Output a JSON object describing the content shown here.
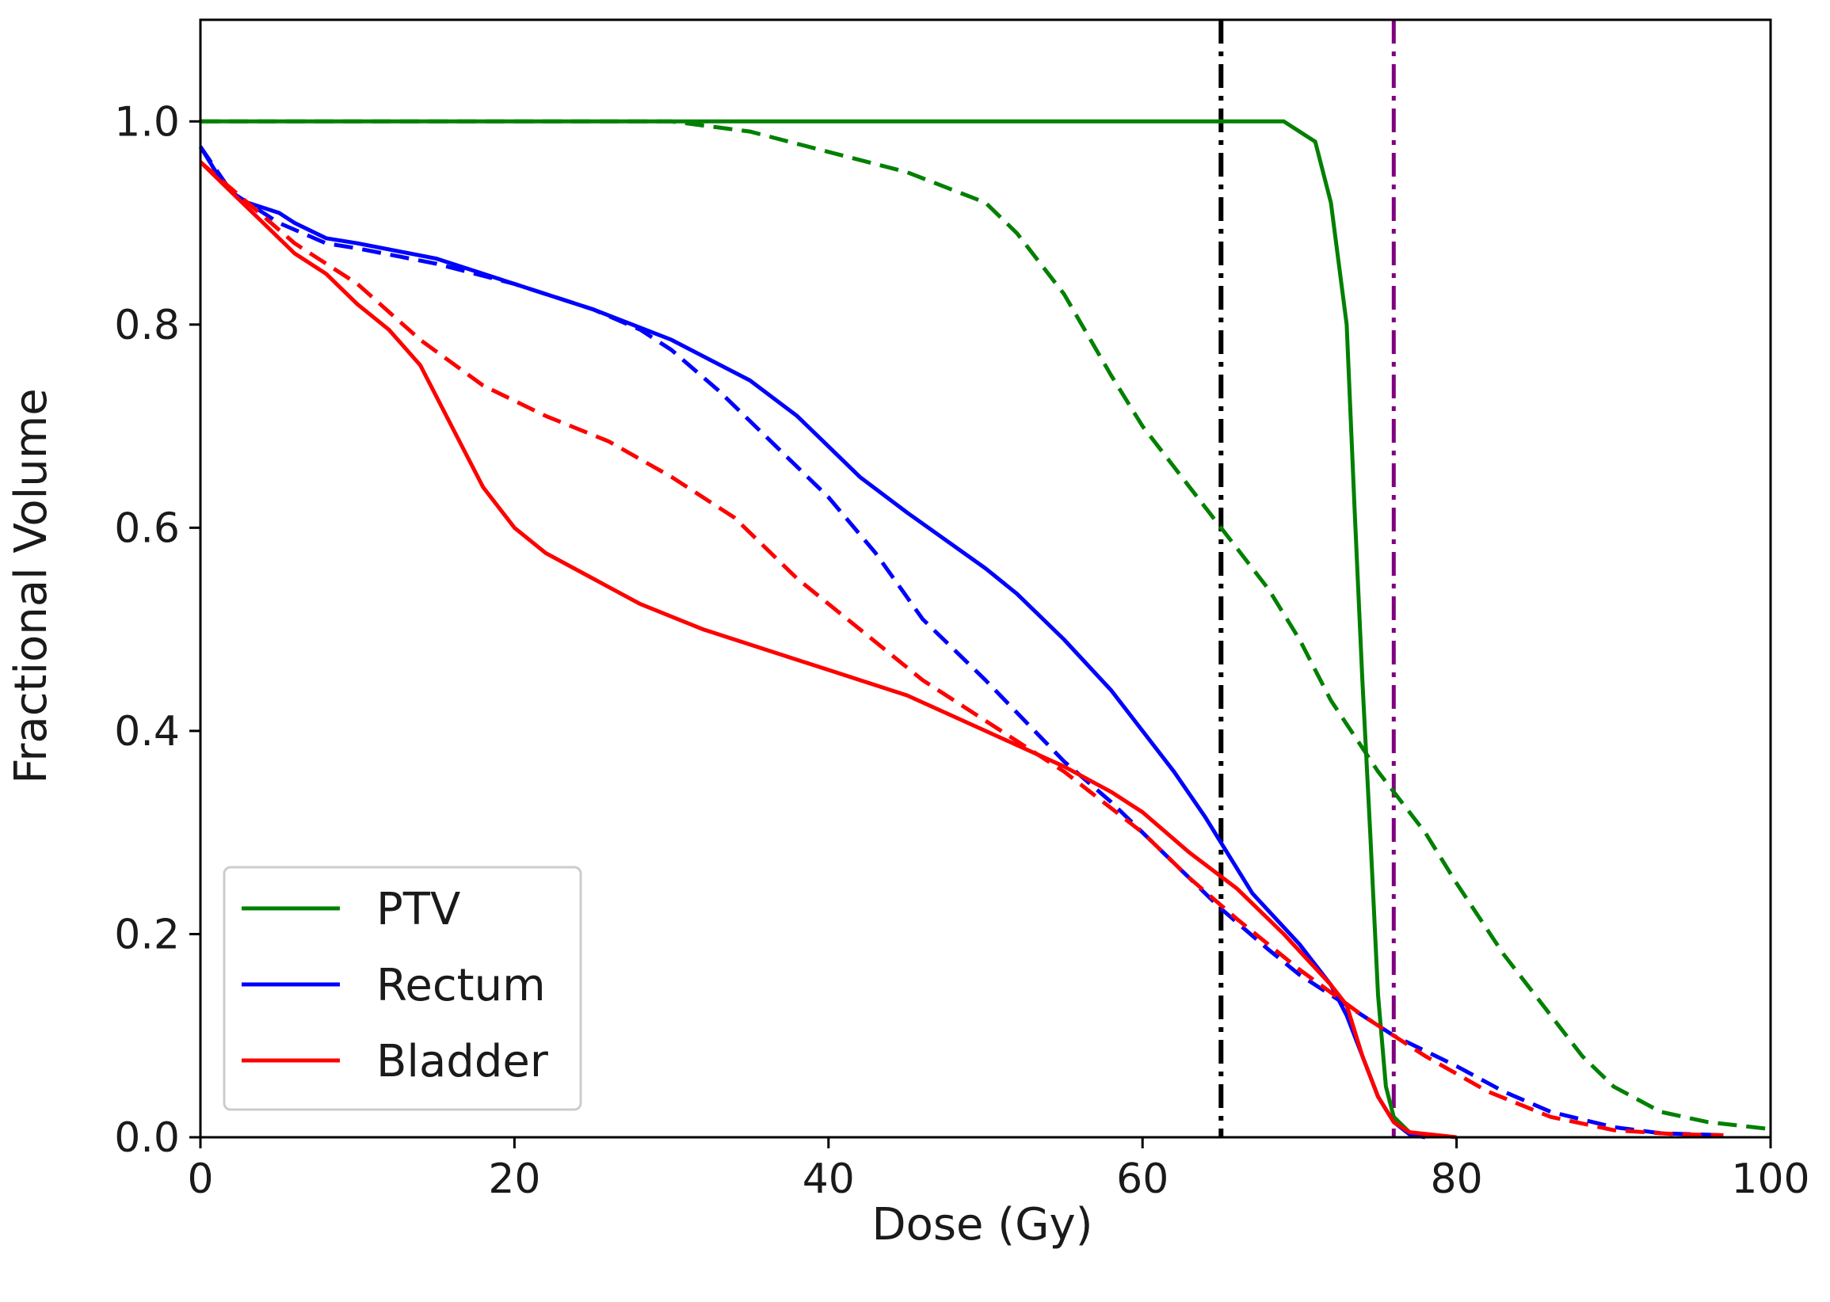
{
  "chart_data": {
    "type": "line",
    "title": "",
    "xlabel": "Dose (Gy)",
    "ylabel": "Fractional Volume",
    "xlim": [
      0,
      100
    ],
    "ylim": [
      0,
      1.1
    ],
    "xticks": [
      0,
      20,
      40,
      60,
      80,
      100
    ],
    "xtick_labels": [
      "0",
      "20",
      "40",
      "60",
      "80",
      "100"
    ],
    "yticks": [
      0,
      0.2,
      0.4,
      0.6,
      0.8,
      1.0
    ],
    "ytick_labels": [
      "0.0",
      "0.2",
      "0.4",
      "0.6",
      "0.8",
      "1.0"
    ],
    "grid": false,
    "legend_position": "lower-left",
    "legend": [
      {
        "label": "PTV",
        "color": "#008000"
      },
      {
        "label": "Rectum",
        "color": "#0000ff"
      },
      {
        "label": "Bladder",
        "color": "#ff0000"
      }
    ],
    "series": [
      {
        "name": "PTV",
        "style": "solid",
        "color": "#008000",
        "points": [
          [
            0,
            1.0
          ],
          [
            20,
            1.0
          ],
          [
            40,
            1.0
          ],
          [
            60,
            1.0
          ],
          [
            66,
            1.0
          ],
          [
            69,
            1.0
          ],
          [
            70,
            0.99
          ],
          [
            71,
            0.98
          ],
          [
            72,
            0.92
          ],
          [
            73,
            0.8
          ],
          [
            73.5,
            0.62
          ],
          [
            74,
            0.45
          ],
          [
            74.5,
            0.3
          ],
          [
            75,
            0.14
          ],
          [
            75.5,
            0.05
          ],
          [
            76,
            0.02
          ],
          [
            77,
            0.005
          ],
          [
            78,
            0.0
          ]
        ]
      },
      {
        "name": "PTV (dashed)",
        "style": "dashed",
        "color": "#008000",
        "points": [
          [
            0,
            1.0
          ],
          [
            10,
            1.0
          ],
          [
            20,
            1.0
          ],
          [
            30,
            1.0
          ],
          [
            35,
            0.99
          ],
          [
            40,
            0.97
          ],
          [
            45,
            0.95
          ],
          [
            50,
            0.92
          ],
          [
            52,
            0.89
          ],
          [
            55,
            0.83
          ],
          [
            58,
            0.75
          ],
          [
            60,
            0.7
          ],
          [
            62,
            0.66
          ],
          [
            65,
            0.6
          ],
          [
            68,
            0.54
          ],
          [
            70,
            0.49
          ],
          [
            72,
            0.43
          ],
          [
            75,
            0.36
          ],
          [
            78,
            0.3
          ],
          [
            80,
            0.25
          ],
          [
            83,
            0.18
          ],
          [
            85,
            0.14
          ],
          [
            88,
            0.08
          ],
          [
            90,
            0.05
          ],
          [
            93,
            0.025
          ],
          [
            96,
            0.015
          ],
          [
            100,
            0.008
          ]
        ]
      },
      {
        "name": "Rectum",
        "style": "solid",
        "color": "#0000ff",
        "points": [
          [
            0,
            0.975
          ],
          [
            1,
            0.95
          ],
          [
            2,
            0.93
          ],
          [
            3,
            0.92
          ],
          [
            5,
            0.91
          ],
          [
            6,
            0.9
          ],
          [
            8,
            0.885
          ],
          [
            10,
            0.88
          ],
          [
            15,
            0.865
          ],
          [
            20,
            0.84
          ],
          [
            25,
            0.815
          ],
          [
            30,
            0.785
          ],
          [
            35,
            0.745
          ],
          [
            38,
            0.71
          ],
          [
            40,
            0.68
          ],
          [
            42,
            0.65
          ],
          [
            45,
            0.615
          ],
          [
            50,
            0.56
          ],
          [
            52,
            0.535
          ],
          [
            55,
            0.49
          ],
          [
            58,
            0.44
          ],
          [
            60,
            0.4
          ],
          [
            62,
            0.36
          ],
          [
            64,
            0.315
          ],
          [
            65,
            0.29
          ],
          [
            67,
            0.24
          ],
          [
            70,
            0.19
          ],
          [
            72,
            0.15
          ],
          [
            73,
            0.12
          ],
          [
            74,
            0.08
          ],
          [
            75,
            0.04
          ],
          [
            76,
            0.015
          ],
          [
            77,
            0.003
          ],
          [
            78,
            0.0
          ]
        ]
      },
      {
        "name": "Rectum (dashed)",
        "style": "dashed",
        "color": "#0000ff",
        "points": [
          [
            0,
            0.975
          ],
          [
            2,
            0.93
          ],
          [
            5,
            0.9
          ],
          [
            8,
            0.88
          ],
          [
            10,
            0.875
          ],
          [
            15,
            0.86
          ],
          [
            20,
            0.84
          ],
          [
            25,
            0.815
          ],
          [
            28,
            0.795
          ],
          [
            30,
            0.775
          ],
          [
            33,
            0.735
          ],
          [
            36,
            0.69
          ],
          [
            40,
            0.63
          ],
          [
            43,
            0.575
          ],
          [
            46,
            0.51
          ],
          [
            50,
            0.45
          ],
          [
            55,
            0.37
          ],
          [
            58,
            0.33
          ],
          [
            62,
            0.27
          ],
          [
            65,
            0.225
          ],
          [
            68,
            0.185
          ],
          [
            70,
            0.16
          ],
          [
            73,
            0.13
          ],
          [
            76,
            0.1
          ],
          [
            80,
            0.07
          ],
          [
            83,
            0.045
          ],
          [
            86,
            0.025
          ],
          [
            90,
            0.01
          ],
          [
            93,
            0.004
          ],
          [
            97,
            0.002
          ]
        ]
      },
      {
        "name": "Bladder",
        "style": "solid",
        "color": "#ff0000",
        "points": [
          [
            0,
            0.96
          ],
          [
            2,
            0.93
          ],
          [
            4,
            0.9
          ],
          [
            6,
            0.87
          ],
          [
            8,
            0.85
          ],
          [
            10,
            0.82
          ],
          [
            12,
            0.795
          ],
          [
            14,
            0.76
          ],
          [
            16,
            0.7
          ],
          [
            18,
            0.64
          ],
          [
            20,
            0.6
          ],
          [
            22,
            0.575
          ],
          [
            25,
            0.55
          ],
          [
            28,
            0.525
          ],
          [
            32,
            0.5
          ],
          [
            36,
            0.48
          ],
          [
            40,
            0.46
          ],
          [
            45,
            0.435
          ],
          [
            50,
            0.4
          ],
          [
            55,
            0.365
          ],
          [
            58,
            0.34
          ],
          [
            60,
            0.32
          ],
          [
            63,
            0.28
          ],
          [
            66,
            0.245
          ],
          [
            69,
            0.2
          ],
          [
            72,
            0.15
          ],
          [
            73,
            0.13
          ],
          [
            74,
            0.08
          ],
          [
            75,
            0.04
          ],
          [
            76,
            0.015
          ],
          [
            77,
            0.005
          ],
          [
            80,
            0.0
          ]
        ]
      },
      {
        "name": "Bladder (dashed)",
        "style": "dashed",
        "color": "#ff0000",
        "points": [
          [
            0,
            0.96
          ],
          [
            3,
            0.92
          ],
          [
            6,
            0.88
          ],
          [
            10,
            0.84
          ],
          [
            14,
            0.785
          ],
          [
            18,
            0.74
          ],
          [
            22,
            0.71
          ],
          [
            26,
            0.685
          ],
          [
            30,
            0.65
          ],
          [
            34,
            0.61
          ],
          [
            38,
            0.55
          ],
          [
            42,
            0.5
          ],
          [
            46,
            0.45
          ],
          [
            50,
            0.41
          ],
          [
            55,
            0.36
          ],
          [
            60,
            0.3
          ],
          [
            63,
            0.255
          ],
          [
            66,
            0.215
          ],
          [
            70,
            0.165
          ],
          [
            74,
            0.12
          ],
          [
            78,
            0.08
          ],
          [
            82,
            0.045
          ],
          [
            86,
            0.02
          ],
          [
            90,
            0.007
          ],
          [
            94,
            0.003
          ],
          [
            97,
            0.002
          ]
        ]
      }
    ],
    "reference_lines": [
      {
        "x": 65,
        "color": "#000000",
        "style": "dashdot"
      },
      {
        "x": 76,
        "color": "#800080",
        "style": "dashdot"
      }
    ]
  }
}
